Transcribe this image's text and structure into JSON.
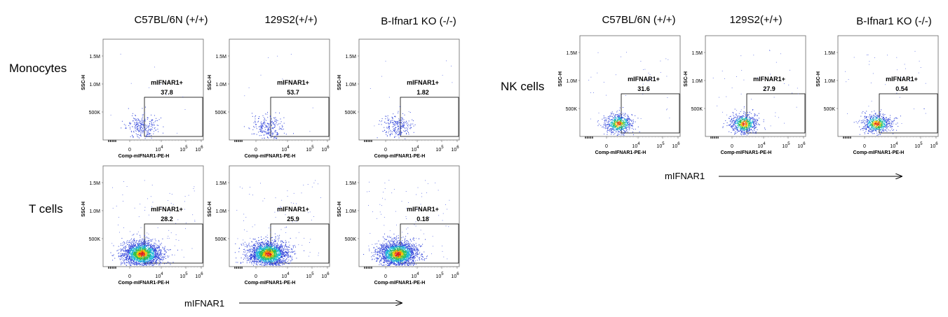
{
  "panel_groups": [
    {
      "columns": [
        "C57BL/6N (+/+)",
        "129S2(+/+)",
        "B-Ifnar1 KO (-/-)"
      ],
      "rows": [
        "Monocytes",
        "T cells"
      ],
      "axis_arrow_label": "mIFNAR1"
    },
    {
      "columns": [
        "C57BL/6N (+/+)",
        "129S2(+/+)",
        "B-Ifnar1 KO (-/-)"
      ],
      "rows": [
        "NK cells"
      ],
      "axis_arrow_label": "mIFNAR1"
    }
  ],
  "chart_data": [
    {
      "type": "scatter",
      "group": "left",
      "row": "Monocytes",
      "column": "C57BL/6N (+/+)",
      "xlabel": "Comp-mIFNAR1-PE-H",
      "ylabel": "SSC-H",
      "yticks": [
        "500K",
        "1.0M",
        "1.5M"
      ],
      "xticks": [
        "0",
        "10^4",
        "10^5",
        "10^6"
      ],
      "gate": {
        "name": "mIFNAR1+",
        "percent": "37.8"
      },
      "density": "sparse"
    },
    {
      "type": "scatter",
      "group": "left",
      "row": "Monocytes",
      "column": "129S2(+/+)",
      "xlabel": "Comp-mIFNAR1-PE-H",
      "ylabel": "SSC-H",
      "yticks": [
        "500K",
        "1.0M",
        "1.5M"
      ],
      "xticks": [
        "0",
        "10^4",
        "10^5",
        "10^6"
      ],
      "gate": {
        "name": "mIFNAR1+",
        "percent": "53.7"
      },
      "density": "sparse"
    },
    {
      "type": "scatter",
      "group": "left",
      "row": "Monocytes",
      "column": "B-Ifnar1 KO (-/-)",
      "xlabel": "Comp-mIFNAR1-PE-H",
      "ylabel": "SSC-H",
      "yticks": [
        "500K",
        "1.0M",
        "1.5M"
      ],
      "xticks": [
        "0",
        "10^4",
        "10^5",
        "10^6"
      ],
      "gate": {
        "name": "mIFNAR1+",
        "percent": "1.82"
      },
      "density": "sparse"
    },
    {
      "type": "scatter",
      "group": "left",
      "row": "T cells",
      "column": "C57BL/6N (+/+)",
      "xlabel": "Comp-mIFNAR1-PE-H",
      "ylabel": "SSC-H",
      "yticks": [
        "500K",
        "1.0M",
        "1.5M"
      ],
      "xticks": [
        "0",
        "10^4",
        "10^5",
        "10^6"
      ],
      "gate": {
        "name": "mIFNAR1+",
        "percent": "28.2"
      },
      "density": "dense"
    },
    {
      "type": "scatter",
      "group": "left",
      "row": "T cells",
      "column": "129S2(+/+)",
      "xlabel": "Comp-mIFNAR1-PE-H",
      "ylabel": "SSC-H",
      "yticks": [
        "500K",
        "1.0M",
        "1.5M"
      ],
      "xticks": [
        "0",
        "10^4",
        "10^5",
        "10^6"
      ],
      "gate": {
        "name": "mIFNAR1+",
        "percent": "25.9"
      },
      "density": "dense"
    },
    {
      "type": "scatter",
      "group": "left",
      "row": "T cells",
      "column": "B-Ifnar1 KO (-/-)",
      "xlabel": "Comp-mIFNAR1-PE-H",
      "ylabel": "SSC-H",
      "yticks": [
        "500K",
        "1.0M",
        "1.5M"
      ],
      "xticks": [
        "0",
        "10^4",
        "10^5",
        "10^6"
      ],
      "gate": {
        "name": "mIFNAR1+",
        "percent": "0.18"
      },
      "density": "dense"
    },
    {
      "type": "scatter",
      "group": "right",
      "row": "NK cells",
      "column": "C57BL/6N (+/+)",
      "xlabel": "Comp-mIFNAR1-PE-H",
      "ylabel": "SSC-H",
      "yticks": [
        "500K",
        "1.0M",
        "1.5M"
      ],
      "xticks": [
        "0",
        "10^4",
        "10^5",
        "10^6"
      ],
      "gate": {
        "name": "mIFNAR1+",
        "percent": "31.6"
      },
      "density": "medium"
    },
    {
      "type": "scatter",
      "group": "right",
      "row": "NK cells",
      "column": "129S2(+/+)",
      "xlabel": "Comp-mIFNAR1-PE-H",
      "ylabel": "SSC-H",
      "yticks": [
        "500K",
        "1.0M",
        "1.5M"
      ],
      "xticks": [
        "0",
        "10^4",
        "10^5",
        "10^6"
      ],
      "gate": {
        "name": "mIFNAR1+",
        "percent": "27.9"
      },
      "density": "medium"
    },
    {
      "type": "scatter",
      "group": "right",
      "row": "NK cells",
      "column": "B-Ifnar1 KO (-/-)",
      "xlabel": "Comp-mIFNAR1-PE-H",
      "ylabel": "SSC-H",
      "yticks": [
        "500K",
        "1.0M",
        "1.5M"
      ],
      "xticks": [
        "0",
        "10^4",
        "10^5",
        "10^6"
      ],
      "gate": {
        "name": "mIFNAR1+",
        "percent": "0.54"
      },
      "density": "medium"
    }
  ]
}
